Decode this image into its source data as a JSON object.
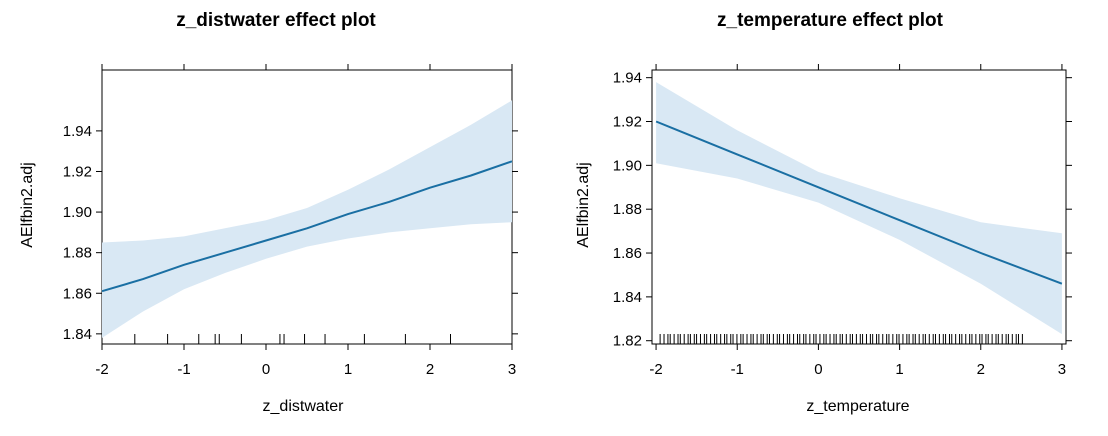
{
  "chart_data": [
    {
      "type": "line",
      "title": "z_distwater effect plot",
      "xlabel": "z_distwater",
      "ylabel": "AElfbin2.adj",
      "xlim": [
        -2,
        3
      ],
      "ylim": [
        1.835,
        1.97
      ],
      "xticks": [
        -2,
        -1,
        0,
        1,
        2,
        3
      ],
      "yticks": [
        1.84,
        1.86,
        1.88,
        1.9,
        1.92,
        1.94
      ],
      "ytick_labels": [
        "1.84",
        "1.86",
        "1.88",
        "1.90",
        "1.92",
        "1.94"
      ],
      "grid": false,
      "series": [
        {
          "x": [
            -2,
            -1.5,
            -1,
            -0.5,
            0,
            0.5,
            1,
            1.5,
            2,
            2.5,
            3
          ],
          "y": [
            1.861,
            1.867,
            1.874,
            1.88,
            1.886,
            1.892,
            1.899,
            1.905,
            1.912,
            1.918,
            1.925
          ],
          "lower": [
            1.838,
            1.851,
            1.862,
            1.87,
            1.877,
            1.883,
            1.887,
            1.89,
            1.892,
            1.894,
            1.895
          ],
          "upper": [
            1.885,
            1.886,
            1.888,
            1.892,
            1.896,
            1.902,
            1.911,
            1.921,
            1.932,
            1.943,
            1.955
          ]
        }
      ],
      "rug": [
        -1.6,
        -1.2,
        -0.82,
        -0.62,
        -0.57,
        -0.3,
        0.17,
        0.22,
        0.47,
        0.72,
        1.2,
        1.7,
        2.25
      ],
      "colors": {
        "line": "#1a6fa3",
        "band": "#d9e8f4",
        "frame": "#000000"
      }
    },
    {
      "type": "line",
      "title": "z_temperature effect plot",
      "xlabel": "z_temperature",
      "ylabel": "AElfbin2.adj",
      "xlim": [
        -2.05,
        3.05
      ],
      "ylim": [
        1.8185,
        1.9435
      ],
      "xticks": [
        -2,
        -1,
        0,
        1,
        2,
        3
      ],
      "yticks": [
        1.82,
        1.84,
        1.86,
        1.88,
        1.9,
        1.92,
        1.94
      ],
      "ytick_labels": [
        "1.82",
        "1.84",
        "1.86",
        "1.88",
        "1.90",
        "1.92",
        "1.94"
      ],
      "grid": false,
      "series": [
        {
          "x": [
            -2,
            -1,
            0,
            1,
            2,
            3
          ],
          "y": [
            1.92,
            1.905,
            1.89,
            1.875,
            1.86,
            1.846
          ],
          "lower": [
            1.901,
            1.894,
            1.883,
            1.866,
            1.846,
            1.823
          ],
          "upper": [
            1.938,
            1.916,
            1.897,
            1.885,
            1.874,
            1.869
          ]
        }
      ],
      "rug_range": [
        -1.95,
        2.5
      ],
      "colors": {
        "line": "#1a6fa3",
        "band": "#d9e8f4",
        "frame": "#000000"
      }
    }
  ]
}
